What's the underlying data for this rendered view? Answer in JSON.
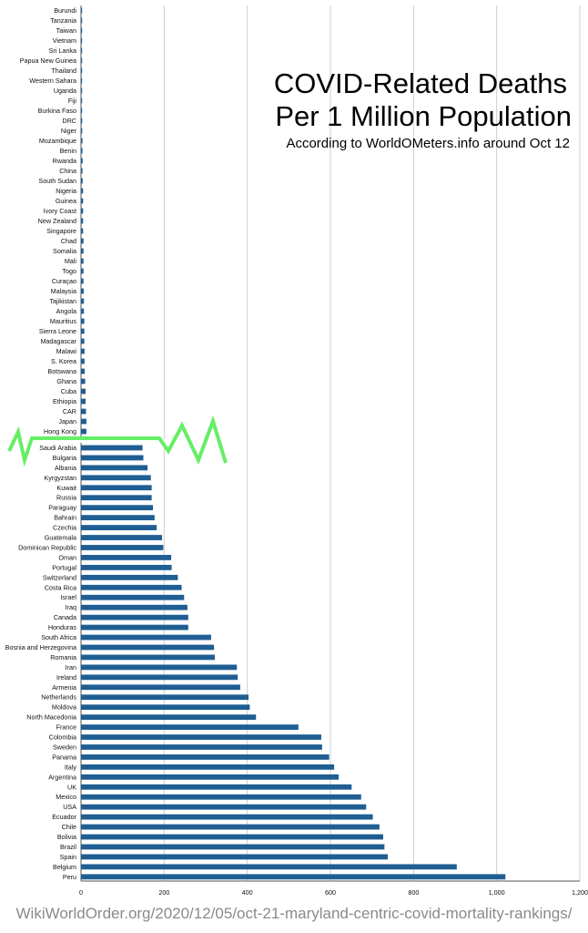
{
  "chart_data": {
    "type": "bar",
    "orientation": "horizontal",
    "title_line1": "COVID-Related Deaths",
    "title_line2": "Per 1 Million Population",
    "subtitle": "According to WorldOMeters.info around Oct 12",
    "xlim": [
      0,
      1200
    ],
    "x_ticks": [
      "0",
      "200",
      "400",
      "600",
      "800",
      "1,000",
      "1,200"
    ],
    "grid": true,
    "axis_break": true,
    "bar_color": "#1f5e93",
    "break_color": "#66ee66",
    "categories": [
      "Burundi",
      "Tanzania",
      "Taiwan",
      "Vietnam",
      "Sri Lanka",
      "Papua New Guinea",
      "Thailand",
      "Western Sahara",
      "Uganda",
      "Fiji",
      "Burkina Faso",
      "DRC",
      "Niger",
      "Mozambique",
      "Benin",
      "Rwanda",
      "China",
      "South Sudan",
      "Nigeria",
      "Guinea",
      "Ivory Coast",
      "New Zealand",
      "Singapore",
      "Chad",
      "Somalia",
      "Mali",
      "Togo",
      "Curaçao",
      "Malaysia",
      "Tajikistan",
      "Angola",
      "Mauritius",
      "Sierra Leone",
      "Madagascar",
      "Malawi",
      "S. Korea",
      "Botswana",
      "Ghana",
      "Cuba",
      "Ethiopia",
      "CAR",
      "Japan",
      "Hong Kong",
      "Saudi Arabia",
      "Bulgaria",
      "Albania",
      "Kyrgyzstan",
      "Kuwait",
      "Russia",
      "Paraguay",
      "Bahrain",
      "Czechia",
      "Guatemala",
      "Dominican Republic",
      "Oman",
      "Portugal",
      "Switzerland",
      "Costa Rica",
      "Israel",
      "Iraq",
      "Canada",
      "Honduras",
      "South Africa",
      "Bosnia and Herzegovina",
      "Romania",
      "Iran",
      "Ireland",
      "Armenia",
      "Netherlands",
      "Moldova",
      "North Macedonia",
      "France",
      "Colombia",
      "Sweden",
      "Panama",
      "Italy",
      "Argentina",
      "UK",
      "Mexico",
      "USA",
      "Ecuador",
      "Chile",
      "Bolivia",
      "Brazil",
      "Spain",
      "Belgium",
      "Peru"
    ],
    "values": [
      0.1,
      0.3,
      0.3,
      0.4,
      0.6,
      0.6,
      0.8,
      1,
      1.5,
      2,
      2.5,
      3,
      3,
      3.5,
      3.5,
      4,
      3.5,
      4,
      5,
      5,
      5,
      5,
      5,
      6,
      6,
      6,
      6,
      6,
      6.5,
      7,
      7,
      8,
      8,
      8,
      8.5,
      8.5,
      9,
      10,
      11,
      11,
      12,
      13,
      13,
      148,
      150,
      160,
      168,
      170,
      170,
      173,
      177,
      182,
      195,
      198,
      217,
      218,
      233,
      242,
      248,
      256,
      258,
      258,
      313,
      320,
      322,
      375,
      377,
      383,
      403,
      406,
      421,
      523,
      578,
      580,
      597,
      609,
      620,
      651,
      674,
      686,
      702,
      718,
      727,
      730,
      738,
      904,
      1021
    ]
  },
  "footer": {
    "credit": "WikiWorldOrder.org/2020/12/05/oct-21-maryland-centric-covid-mortality-rankings/"
  }
}
